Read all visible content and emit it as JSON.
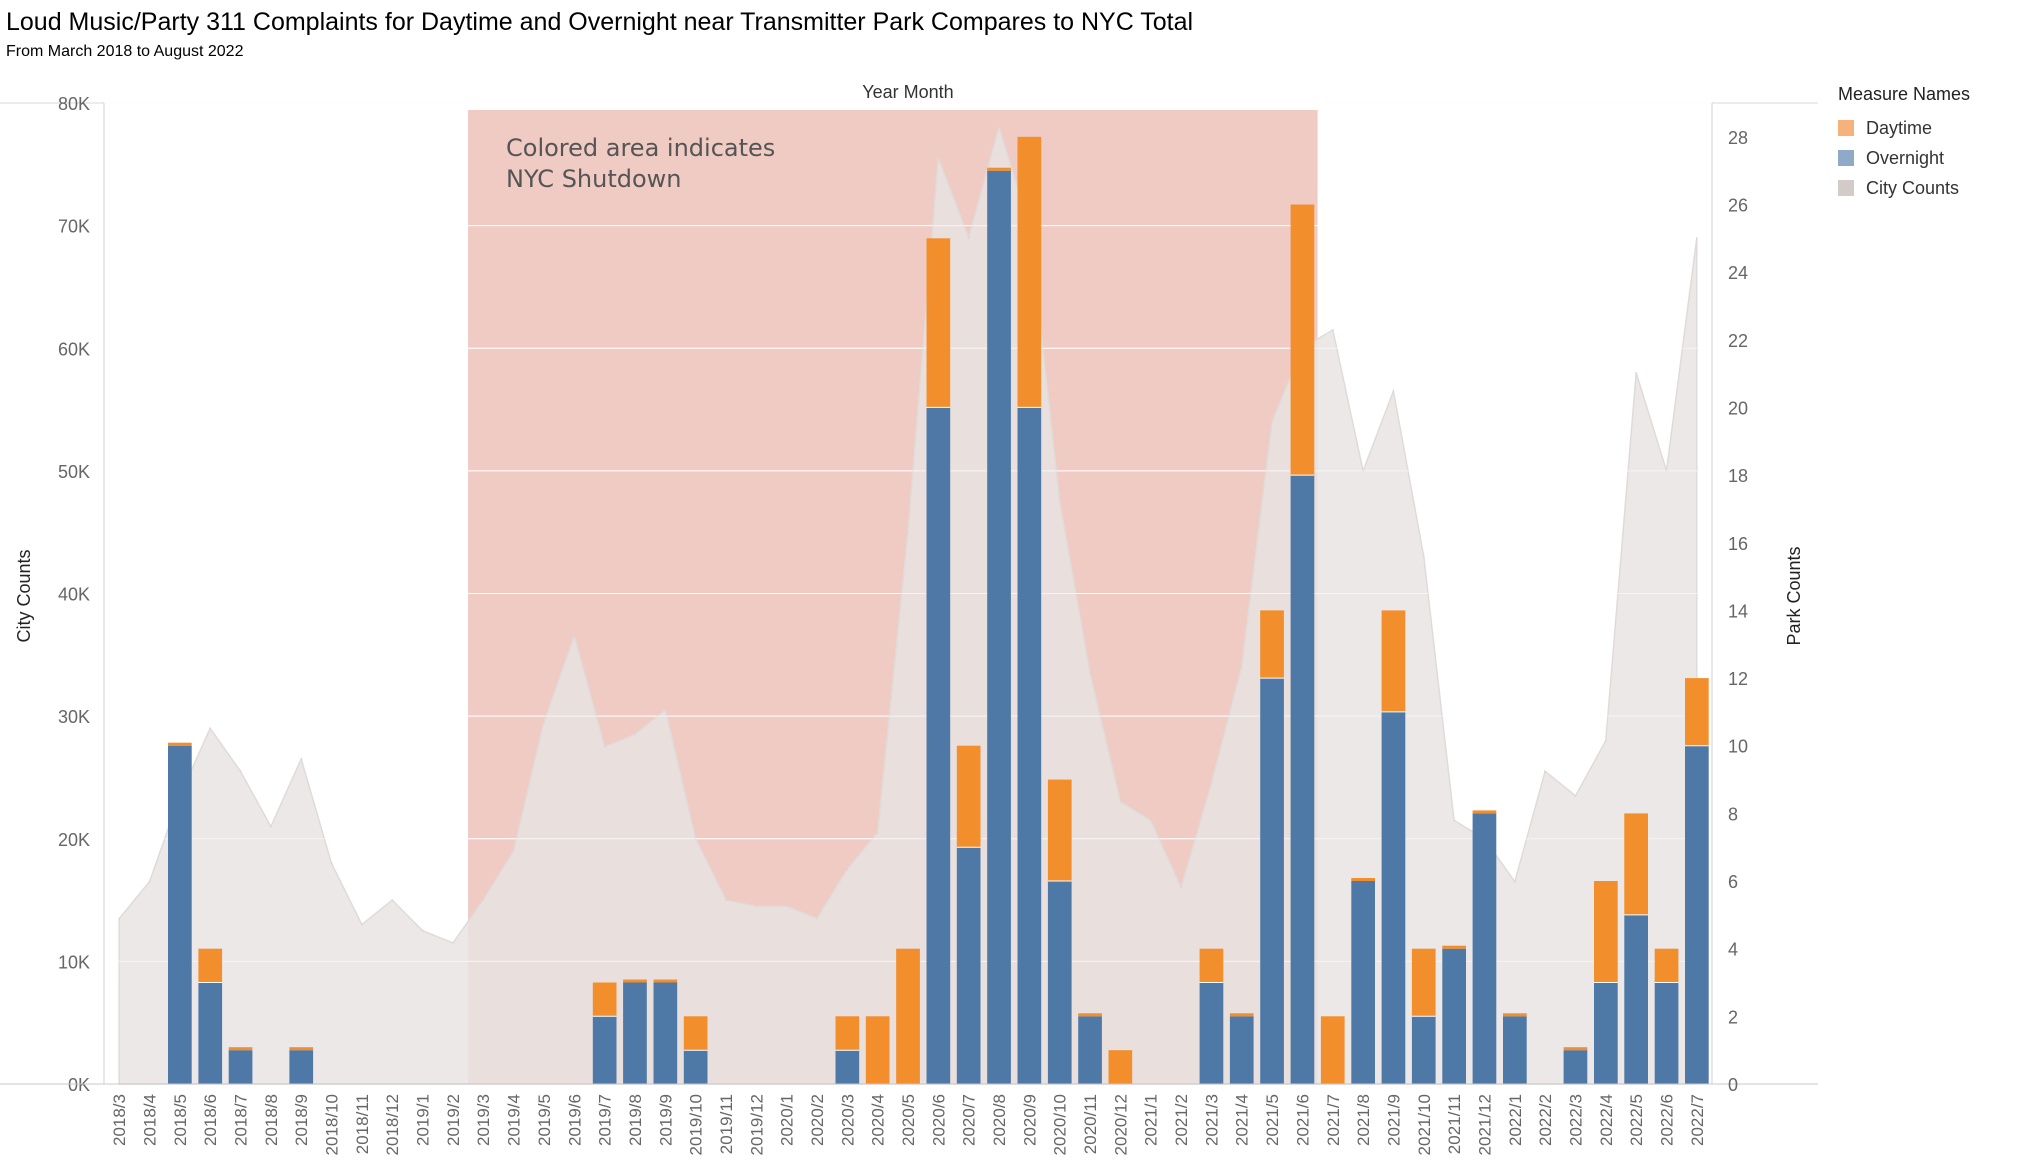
{
  "header": {
    "title": "Loud Music/Party 311 Complaints for Daytime and Overnight near Transmitter Park Compares to NYC Total",
    "subtitle": "From March 2018 to August 2022"
  },
  "legend": {
    "title": "Measure Names",
    "items": [
      {
        "label": "Daytime",
        "color": "#f6b27a"
      },
      {
        "label": "Overnight",
        "color": "#8fa9c9"
      },
      {
        "label": "City Counts",
        "color": "#d2cbc7"
      }
    ]
  },
  "chart_data": {
    "type": "bar",
    "top_axis_label": "Year Month",
    "ylabel_left": "City Counts",
    "ylabel_right": "Park Counts",
    "ylim_left": [
      0,
      80000
    ],
    "ylim_right": [
      0,
      29
    ],
    "left_ticks": [
      "0K",
      "10K",
      "20K",
      "30K",
      "40K",
      "50K",
      "60K",
      "70K",
      "80K"
    ],
    "right_ticks": [
      0,
      2,
      4,
      6,
      8,
      10,
      12,
      14,
      16,
      18,
      20,
      22,
      24,
      26,
      28
    ],
    "categories": [
      "2018/3",
      "2018/4",
      "2018/5",
      "2018/6",
      "2018/7",
      "2018/8",
      "2018/9",
      "2018/10",
      "2018/11",
      "2018/12",
      "2019/1",
      "2019/2",
      "2019/3",
      "2019/4",
      "2019/5",
      "2019/6",
      "2019/7",
      "2019/8",
      "2019/9",
      "2019/10",
      "2019/11",
      "2019/12",
      "2020/1",
      "2020/2",
      "2020/3",
      "2020/4",
      "2020/5",
      "2020/6",
      "2020/7",
      "2020/8",
      "2020/9",
      "2020/10",
      "2020/11",
      "2020/12",
      "2021/1",
      "2021/2",
      "2021/3",
      "2021/4",
      "2021/5",
      "2021/6",
      "2021/7",
      "2021/8",
      "2021/9",
      "2021/10",
      "2021/11",
      "2021/12",
      "2022/1",
      "2022/2",
      "2022/3",
      "2022/4",
      "2022/5",
      "2022/6",
      "2022/7"
    ],
    "series": [
      {
        "name": "Overnight",
        "color": "#4e79a7",
        "values": [
          0,
          0,
          10,
          3,
          1,
          0,
          1,
          0,
          0,
          0,
          0,
          0,
          0,
          0,
          0,
          0,
          2,
          3,
          3,
          1,
          0,
          0,
          0,
          0,
          1,
          0,
          0,
          20,
          7,
          27,
          20,
          6,
          2,
          0,
          0,
          0,
          3,
          2,
          12,
          18,
          0,
          6,
          11,
          2,
          4,
          8,
          2,
          0,
          1,
          3,
          5,
          3,
          10
        ]
      },
      {
        "name": "Daytime",
        "color": "#f28e2b",
        "values": [
          0,
          0,
          0,
          1,
          0,
          0,
          0,
          0,
          0,
          0,
          0,
          0,
          0,
          0,
          0,
          0,
          1,
          0,
          0,
          1,
          0,
          0,
          0,
          0,
          1,
          2,
          4,
          5,
          3,
          0,
          8,
          3,
          0,
          1,
          0,
          0,
          1,
          0,
          2,
          8,
          2,
          0,
          3,
          2,
          0,
          0,
          0,
          0,
          0,
          3,
          3,
          1,
          2
        ]
      },
      {
        "name": "City Counts",
        "color": "#e8e4e3",
        "values": [
          13500,
          16500,
          23500,
          29000,
          25500,
          21000,
          26500,
          18000,
          13000,
          15000,
          12500,
          11500,
          15000,
          19000,
          29500,
          36500,
          27500,
          28500,
          30500,
          20000,
          15000,
          14500,
          14500,
          13500,
          17500,
          20500,
          45000,
          75500,
          69000,
          78000,
          70000,
          47500,
          33500,
          23000,
          21500,
          16000,
          24500,
          34000,
          54000,
          60000,
          61500,
          50000,
          56500,
          43000,
          21500,
          20000,
          16500,
          25500,
          23500,
          28000,
          58000,
          50000,
          69000
        ]
      }
    ],
    "annotation": {
      "lines": [
        "Colored area indicates",
        "NYC Shutdown"
      ],
      "start": "2019/3",
      "end": "2021/6",
      "color": "#efcbc4"
    }
  }
}
